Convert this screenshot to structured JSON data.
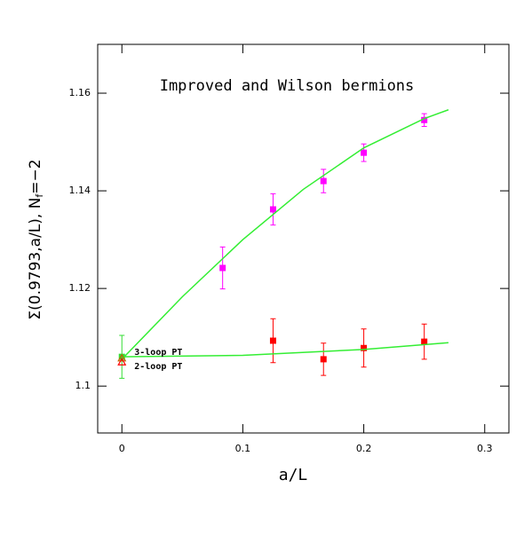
{
  "chart_data": {
    "type": "scatter",
    "title": "Improved and Wilson bermions",
    "xlabel": "a/L",
    "ylabel": [
      "Σ(0.9793,a/L), N",
      "f",
      "=−2"
    ],
    "xlim": [
      -0.02,
      0.32
    ],
    "ylim": [
      1.0904,
      1.17
    ],
    "xticks": [
      0,
      0.1,
      0.2,
      0.3
    ],
    "yticks": [
      1.1,
      1.12,
      1.14,
      1.16
    ],
    "series": [
      {
        "mode": "markers",
        "marker": "square",
        "color": "#ff00ff",
        "x": [
          0.0833,
          0.125,
          0.1667,
          0.2,
          0.25
        ],
        "values": [
          1.1242,
          1.1362,
          1.142,
          1.1478,
          1.1545
        ],
        "errors": [
          0.0043,
          0.0032,
          0.0024,
          0.0018,
          0.0013
        ]
      },
      {
        "mode": "markers",
        "marker": "square",
        "color": "#ff0000",
        "x": [
          0.125,
          0.1667,
          0.2,
          0.25
        ],
        "values": [
          1.1093,
          1.1055,
          1.1078,
          1.1091
        ],
        "errors": [
          0.0045,
          0.0033,
          0.0039,
          0.0036
        ]
      },
      {
        "mode": "markers",
        "marker": "square",
        "color": "#33dd33",
        "x": [
          0
        ],
        "values": [
          1.106
        ],
        "errors": [
          0.0044
        ]
      },
      {
        "mode": "line",
        "color": "#33ee33",
        "x": [
          0,
          0.05,
          0.1,
          0.15,
          0.2,
          0.25,
          0.27
        ],
        "values": [
          1.1055,
          1.1183,
          1.13,
          1.1403,
          1.1488,
          1.1548,
          1.1566
        ]
      },
      {
        "mode": "line",
        "color": "#33ee33",
        "x": [
          0,
          0.1,
          0.2,
          0.27
        ],
        "values": [
          1.106,
          1.1063,
          1.1075,
          1.1089
        ]
      },
      {
        "name": "3-loop PT",
        "mode": "markers",
        "marker": "triangle",
        "color": "#c06000",
        "x": [
          0
        ],
        "values": [
          1.1057
        ]
      },
      {
        "name": "2-loop PT",
        "mode": "markers",
        "marker": "triangle",
        "color": "#ff0000",
        "x": [
          0
        ],
        "values": [
          1.1049
        ]
      }
    ]
  }
}
